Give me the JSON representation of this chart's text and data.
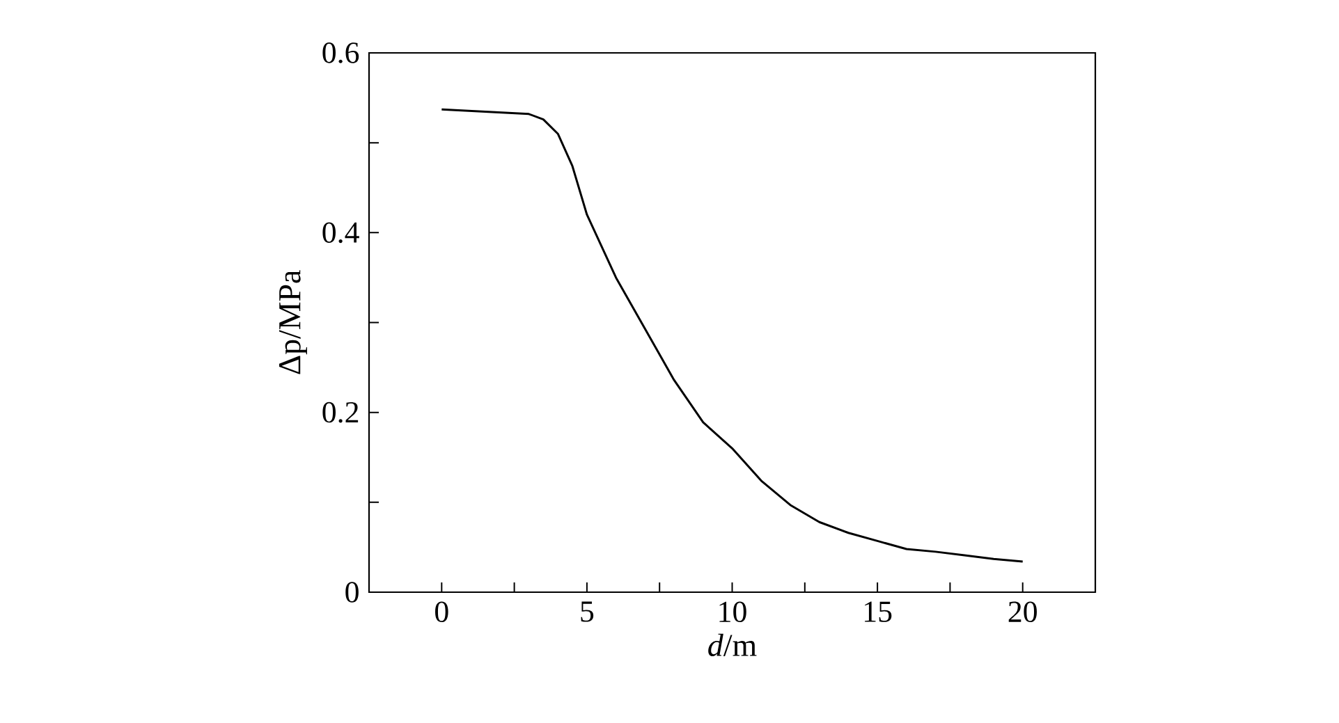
{
  "chart_data": {
    "type": "line",
    "xlabel": "*d*/m",
    "ylabel": "Δp/MPa",
    "x": [
      0,
      3,
      3.5,
      4,
      4.5,
      5,
      6,
      7,
      8,
      9,
      10,
      11,
      12,
      13,
      14,
      15,
      16,
      17,
      18,
      19,
      20
    ],
    "series": [
      {
        "color": "#000000",
        "values": [
          0.537,
          0.532,
          0.526,
          0.51,
          0.474,
          0.42,
          0.35,
          0.293,
          0.236,
          0.189,
          0.16,
          0.124,
          0.097,
          0.078,
          0.066,
          0.057,
          0.048,
          0.045,
          0.041,
          0.037,
          0.034
        ]
      }
    ],
    "xlim": [
      -2.5,
      22.5
    ],
    "xticks": [
      0,
      {
        "value": 2.5,
        "label": null
      },
      5,
      {
        "value": 7.5,
        "label": null
      },
      10,
      {
        "value": 12.5,
        "label": null
      },
      15,
      {
        "value": 17.5,
        "label": null
      },
      20
    ],
    "ylim": [
      0,
      0.6
    ],
    "yticks": [
      0,
      {
        "value": 0.1,
        "label": null
      },
      0.2,
      {
        "value": 0.3,
        "label": null
      },
      0.4,
      {
        "value": 0.5,
        "label": null
      },
      0.6
    ],
    "grid": false,
    "marker": "none",
    "line_style": "solid"
  }
}
